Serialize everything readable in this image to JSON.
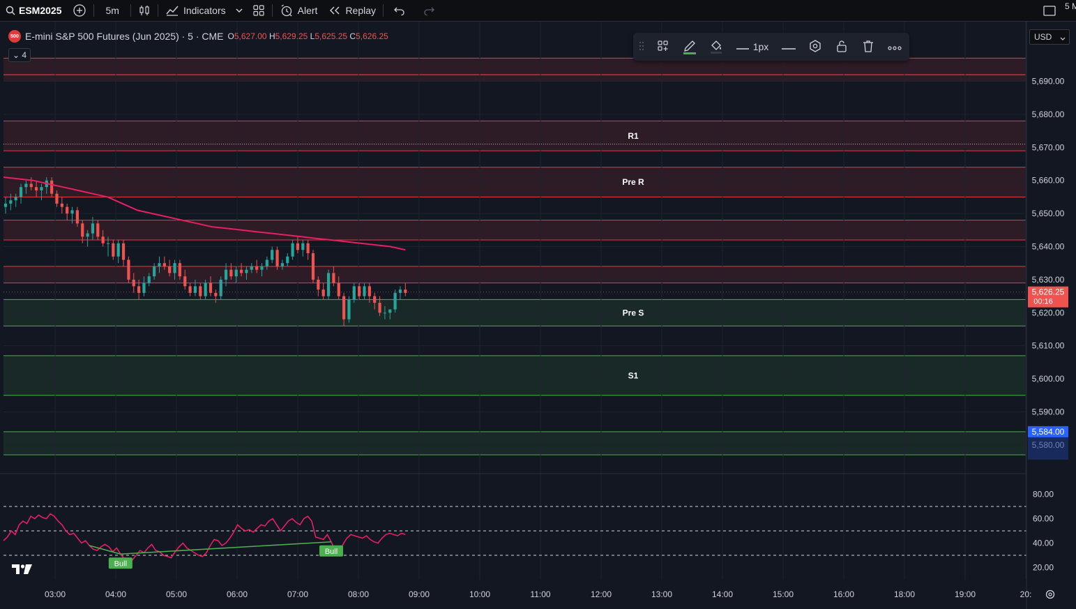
{
  "topbar": {
    "symbol": "ESM2025",
    "interval": "5m",
    "indicators_label": "Indicators",
    "alert_label": "Alert",
    "replay_label": "Replay",
    "corner_text": "5 M"
  },
  "legend": {
    "logo_text": "500",
    "title": "E-mini S&P 500 Futures (Jun 2025) · 5 · CME",
    "o_key": "O",
    "o_val": "5,627.00",
    "h_key": "H",
    "h_val": "5,629.25",
    "l_key": "L",
    "l_val": "5,625.25",
    "c_key": "C",
    "c_val": "5,626.25",
    "collapse_label": "⌄ 4"
  },
  "drawing_toolbar": {
    "width_label": "1px"
  },
  "currency": "USD",
  "colors": {
    "background": "#131722",
    "up": "#26a69a",
    "down": "#ef5350",
    "ma": "#e91e63",
    "resistance": "#f23645",
    "support": "#4caf50",
    "bull_label": "#4caf50"
  },
  "chart_data": {
    "type": "candlestick",
    "symbol": "ESM2025",
    "interval": "5m",
    "y_axis_ticks": [
      "5,690.00",
      "5,680.00",
      "5,670.00",
      "5,660.00",
      "5,650.00",
      "5,640.00",
      "5,630.00",
      "5,620.00",
      "5,610.00",
      "5,600.00",
      "5,590.00",
      "5,580.00"
    ],
    "ylim": [
      5573,
      5707
    ],
    "x_axis_ticks": [
      "03:00",
      "04:00",
      "05:00",
      "06:00",
      "07:00",
      "08:00",
      "09:00",
      "10:00",
      "11:00",
      "12:00",
      "13:00",
      "14:00",
      "15:00",
      "16:00",
      "18:00",
      "19:00",
      "20:"
    ],
    "last_price": {
      "label": "5,626.25",
      "countdown": "00:16",
      "value": 5626.25
    },
    "marked_price": {
      "label": "5,584.00",
      "value": 5584
    },
    "zones": [
      {
        "label": "",
        "kind": "resistance",
        "top": 5697,
        "bottom": 5692
      },
      {
        "label": "",
        "kind": "resistance",
        "top": 5692,
        "bottom": 5690
      },
      {
        "label": "R1",
        "kind": "resistance",
        "top": 5678,
        "bottom": 5669
      },
      {
        "label": "Pre R",
        "kind": "resistance",
        "top": 5664,
        "bottom": 5655
      },
      {
        "label": "",
        "kind": "resistance",
        "top": 5648,
        "bottom": 5642
      },
      {
        "label": "",
        "kind": "resistance",
        "top": 5634,
        "bottom": 5629
      },
      {
        "label": "Pre S",
        "kind": "support",
        "top": 5624,
        "bottom": 5616
      },
      {
        "label": "S1",
        "kind": "support",
        "top": 5607,
        "bottom": 5595
      },
      {
        "label": "",
        "kind": "support",
        "top": 5584,
        "bottom": 5577
      }
    ],
    "dotted_level": 5671,
    "candles": [
      [
        5652,
        5655,
        5650,
        5653
      ],
      [
        5653,
        5656,
        5651,
        5654
      ],
      [
        5654,
        5656,
        5652,
        5655
      ],
      [
        5655,
        5659,
        5653,
        5658
      ],
      [
        5658,
        5660,
        5656,
        5659
      ],
      [
        5659,
        5661,
        5657,
        5658
      ],
      [
        5658,
        5660,
        5655,
        5657
      ],
      [
        5657,
        5659,
        5654,
        5658
      ],
      [
        5658,
        5661,
        5656,
        5660
      ],
      [
        5660,
        5661,
        5655,
        5656
      ],
      [
        5656,
        5657,
        5652,
        5653
      ],
      [
        5653,
        5655,
        5650,
        5652
      ],
      [
        5652,
        5653,
        5648,
        5650
      ],
      [
        5650,
        5652,
        5647,
        5651
      ],
      [
        5651,
        5652,
        5646,
        5647
      ],
      [
        5647,
        5648,
        5641,
        5643
      ],
      [
        5643,
        5645,
        5640,
        5644
      ],
      [
        5644,
        5649,
        5642,
        5647
      ],
      [
        5647,
        5648,
        5642,
        5643
      ],
      [
        5643,
        5645,
        5640,
        5641
      ],
      [
        5641,
        5643,
        5637,
        5641
      ],
      [
        5641,
        5642,
        5636,
        5637
      ],
      [
        5637,
        5642,
        5635,
        5641
      ],
      [
        5641,
        5642,
        5634,
        5636
      ],
      [
        5636,
        5637,
        5629,
        5630
      ],
      [
        5630,
        5632,
        5626,
        5628
      ],
      [
        5628,
        5630,
        5624,
        5626
      ],
      [
        5626,
        5631,
        5625,
        5629
      ],
      [
        5629,
        5632,
        5628,
        5631
      ],
      [
        5631,
        5635,
        5630,
        5634
      ],
      [
        5634,
        5637,
        5632,
        5635
      ],
      [
        5635,
        5637,
        5633,
        5634
      ],
      [
        5634,
        5636,
        5631,
        5632
      ],
      [
        5632,
        5636,
        5630,
        5635
      ],
      [
        5635,
        5636,
        5630,
        5631
      ],
      [
        5631,
        5633,
        5627,
        5628
      ],
      [
        5628,
        5629,
        5625,
        5626
      ],
      [
        5626,
        5630,
        5625,
        5628
      ],
      [
        5628,
        5629,
        5624,
        5625
      ],
      [
        5625,
        5630,
        5624,
        5629
      ],
      [
        5629,
        5631,
        5625,
        5626
      ],
      [
        5626,
        5627,
        5623,
        5625
      ],
      [
        5625,
        5631,
        5624,
        5630
      ],
      [
        5630,
        5635,
        5628,
        5633
      ],
      [
        5633,
        5635,
        5630,
        5631
      ],
      [
        5631,
        5634,
        5629,
        5633
      ],
      [
        5633,
        5635,
        5631,
        5632
      ],
      [
        5632,
        5634,
        5630,
        5633
      ],
      [
        5633,
        5635,
        5632,
        5634
      ],
      [
        5634,
        5636,
        5632,
        5633
      ],
      [
        5633,
        5635,
        5631,
        5634
      ],
      [
        5634,
        5637,
        5633,
        5636
      ],
      [
        5636,
        5640,
        5635,
        5639
      ],
      [
        5639,
        5640,
        5633,
        5634
      ],
      [
        5634,
        5636,
        5633,
        5635
      ],
      [
        5635,
        5638,
        5634,
        5637
      ],
      [
        5637,
        5642,
        5636,
        5641
      ],
      [
        5641,
        5643,
        5638,
        5639
      ],
      [
        5639,
        5642,
        5637,
        5641
      ],
      [
        5641,
        5642,
        5636,
        5638
      ],
      [
        5638,
        5639,
        5629,
        5630
      ],
      [
        5630,
        5631,
        5625,
        5627
      ],
      [
        5627,
        5629,
        5624,
        5625
      ],
      [
        5625,
        5633,
        5624,
        5632
      ],
      [
        5632,
        5634,
        5628,
        5629
      ],
      [
        5629,
        5631,
        5624,
        5625
      ],
      [
        5625,
        5626,
        5616,
        5618
      ],
      [
        5618,
        5625,
        5617,
        5624
      ],
      [
        5624,
        5629,
        5623,
        5628
      ],
      [
        5628,
        5629,
        5624,
        5625
      ],
      [
        5625,
        5629,
        5624,
        5628
      ],
      [
        5628,
        5629,
        5623,
        5625
      ],
      [
        5625,
        5626,
        5621,
        5623
      ],
      [
        5623,
        5625,
        5619,
        5620
      ],
      [
        5620,
        5622,
        5618,
        5620
      ],
      [
        5620,
        5621,
        5618,
        5621
      ],
      [
        5621,
        5627,
        5620,
        5626
      ],
      [
        5626,
        5628,
        5624,
        5627
      ],
      [
        5627,
        5629,
        5625,
        5626
      ]
    ],
    "ma_series": [
      5661,
      5660.5,
      5660,
      5659,
      5658,
      5657,
      5656,
      5655,
      5653,
      5651,
      5650,
      5649,
      5648,
      5647,
      5646,
      5645.5,
      5645,
      5644.5,
      5644,
      5643.5,
      5643,
      5642.5,
      5642,
      5641.5,
      5641,
      5640.5,
      5640,
      5639
    ],
    "oscillator": {
      "y_axis_ticks": [
        "80.00",
        "60.00",
        "40.00",
        "20.00"
      ],
      "ylim": [
        10,
        90
      ],
      "levels": [
        70,
        50,
        30
      ],
      "values": [
        42,
        45,
        50,
        47,
        55,
        58,
        56,
        62,
        60,
        63,
        61,
        60,
        64,
        62,
        58,
        55,
        50,
        47,
        48,
        44,
        40,
        42,
        38,
        35,
        34,
        37,
        39,
        37,
        33,
        36,
        31,
        27,
        22,
        26,
        30,
        34,
        32,
        36,
        39,
        34,
        33,
        30,
        29,
        28,
        33,
        37,
        40,
        36,
        34,
        32,
        30,
        29,
        32,
        38,
        43,
        42,
        38,
        40,
        44,
        49,
        55,
        52,
        50,
        51,
        49,
        52,
        55,
        54,
        58,
        60,
        55,
        50,
        54,
        58,
        60,
        57,
        55,
        60,
        62,
        58,
        45,
        44,
        43,
        47,
        41,
        34,
        30,
        39,
        44,
        47,
        46,
        45,
        44,
        46,
        43,
        41,
        40,
        44,
        47,
        48,
        47,
        46,
        48,
        47
      ],
      "divergences": [
        {
          "label": "Bull",
          "from": 22,
          "to": 30
        },
        {
          "label": "Bull",
          "from": 30,
          "to": 84
        }
      ]
    }
  }
}
